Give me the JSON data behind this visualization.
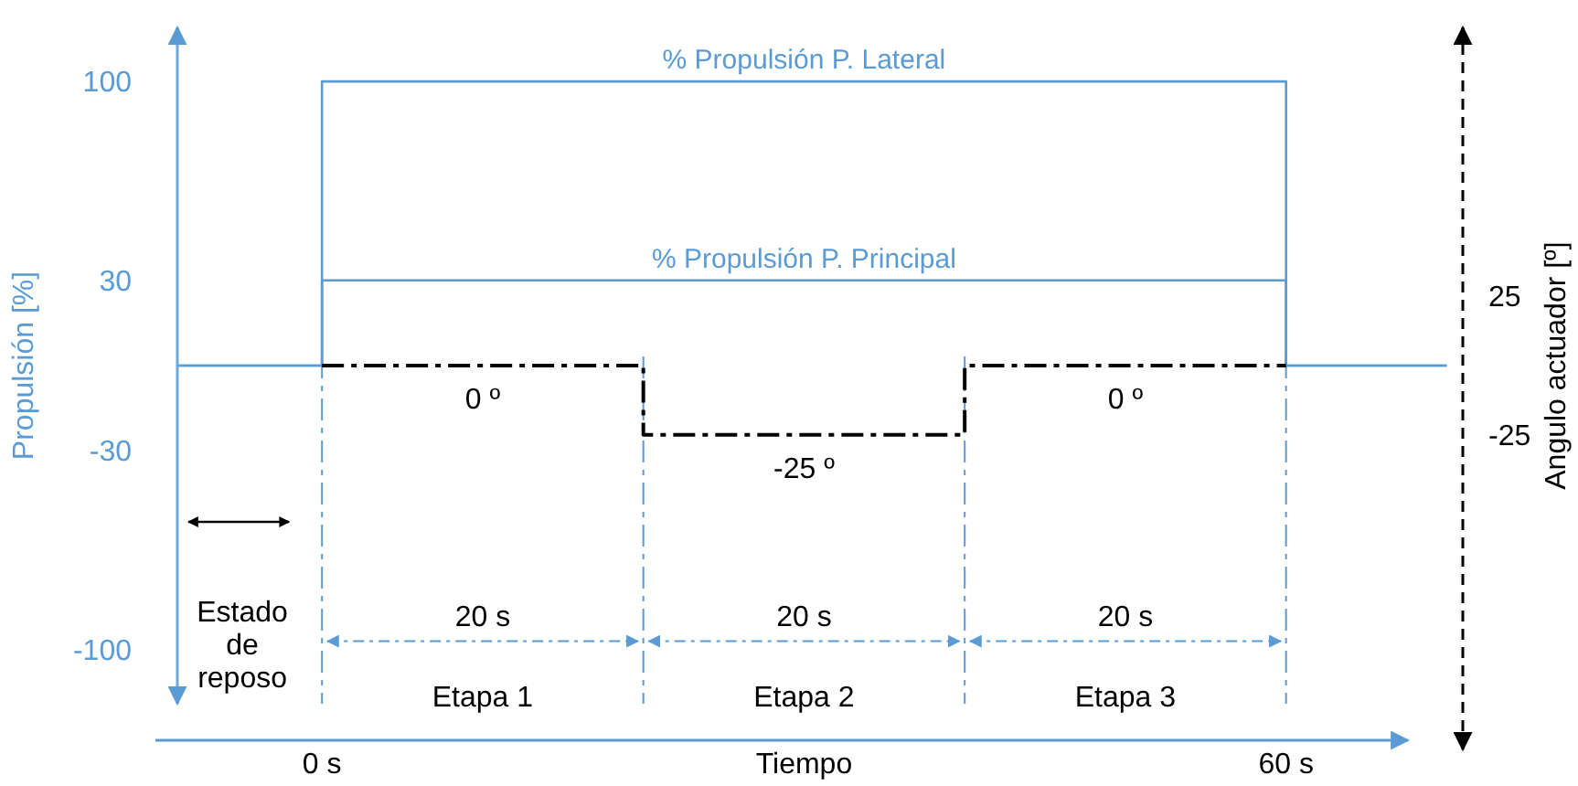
{
  "chart_data": {
    "type": "step",
    "xlabel": "Tiempo",
    "ylabel": "Propulsión [%]",
    "y2label": "Angulo actuador [º]",
    "xlim": [
      -9,
      71
    ],
    "xticks": [
      {
        "value": 0,
        "label": "0 s"
      },
      {
        "value": 60,
        "label": "60 s"
      }
    ],
    "ylim": [
      -119,
      119
    ],
    "yticks": [
      100,
      30,
      -30,
      -100
    ],
    "y2lim": [
      -122,
      122
    ],
    "y2ticks": [
      25,
      -25
    ],
    "series": [
      {
        "name": "% Propulsión P. Lateral",
        "color": "#5b9bd5",
        "x": [
          -9,
          0,
          60,
          70
        ],
        "values": [
          0,
          100,
          0,
          0
        ],
        "line_style": "solid"
      },
      {
        "name": "% Propulsión P. Principal",
        "color": "#5b9bd5",
        "x": [
          -9,
          0,
          60,
          70
        ],
        "values": [
          0,
          30,
          0,
          0
        ],
        "line_style": "solid"
      },
      {
        "color": "#000000",
        "x": [
          0,
          20,
          40,
          60
        ],
        "values": [
          0,
          -25,
          0,
          0
        ],
        "axis": "y2",
        "line_style": "dashed"
      }
    ],
    "ref_lines": [
      {
        "axis": "x",
        "value": 0,
        "color": "#5b9bd5",
        "line_style": "dashed"
      },
      {
        "axis": "x",
        "value": 20,
        "color": "#5b9bd5",
        "line_style": "dashed"
      },
      {
        "axis": "x",
        "value": 40,
        "color": "#5b9bd5",
        "line_style": "dashed"
      },
      {
        "axis": "x",
        "value": 60,
        "color": "#5b9bd5",
        "line_style": "dashed"
      }
    ],
    "annotations": [
      "Estado de reposo",
      "20 s",
      "20 s",
      "20 s",
      "Etapa 1",
      "Etapa 2",
      "Etapa 3",
      "0 º",
      "-25 º",
      "0 º"
    ],
    "grid": false
  }
}
